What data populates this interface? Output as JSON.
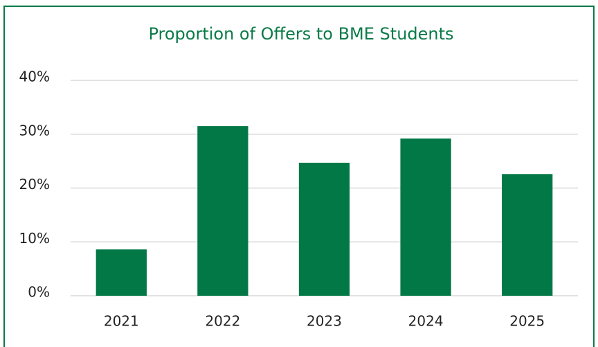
{
  "chart_data": {
    "type": "bar",
    "title": "Proportion of Offers to BME Students",
    "categories": [
      "2021",
      "2022",
      "2023",
      "2024",
      "2025"
    ],
    "values": [
      8.6,
      31.5,
      24.7,
      29.2,
      22.6
    ],
    "color": "#037847",
    "ylim": [
      0,
      40
    ],
    "yticks": [
      {
        "value": 0,
        "label": "0%"
      },
      {
        "value": 10,
        "label": "10%"
      },
      {
        "value": 20,
        "label": "20%"
      },
      {
        "value": 30,
        "label": "30%"
      },
      {
        "value": 40,
        "label": "40%"
      }
    ],
    "grid": true
  }
}
